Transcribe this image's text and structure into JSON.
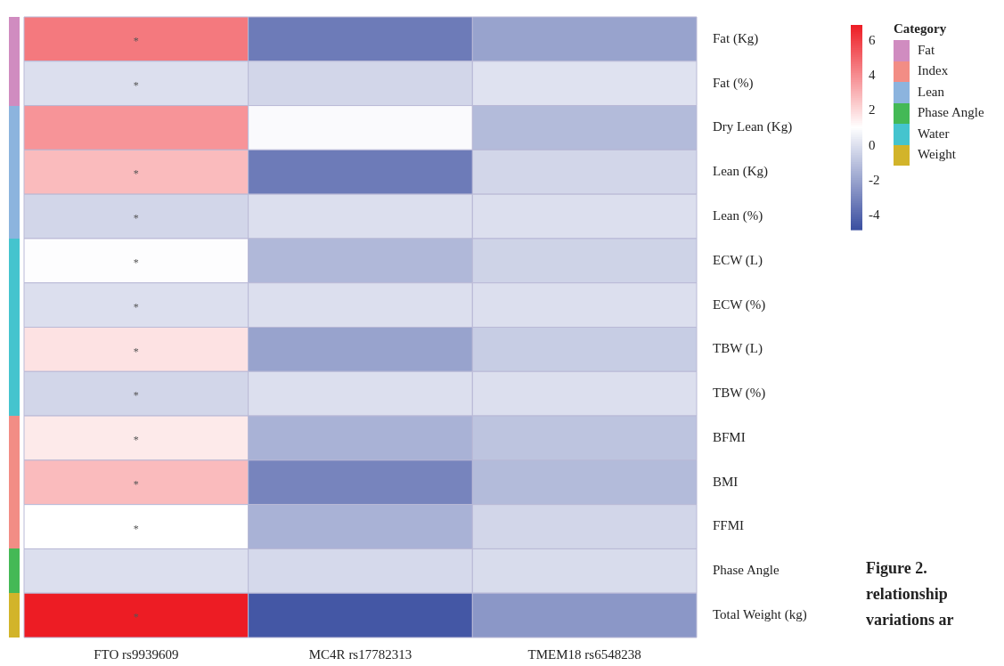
{
  "chart_data": {
    "type": "heatmap",
    "categories": [
      "FTO rs9939609",
      "MC4R rs17782313",
      "TMEM18 rs6548238"
    ],
    "y_categories": [
      "Fat (Kg)",
      "Fat (%)",
      "Dry Lean (Kg)",
      "Lean (Kg)",
      "Lean (%)",
      "ECW (L)",
      "ECW (%)",
      "TBW (L)",
      "TBW (%)",
      "BFMI",
      "BMI",
      "FFMI",
      "Phase Angle",
      "Total Weight (kg)"
    ],
    "cells": [
      [
        4.5,
        -3.3,
        -2.0
      ],
      [
        0,
        -0.3,
        0.1
      ],
      [
        3.8,
        0.9,
        -1.2
      ],
      [
        2.8,
        -3.3,
        -0.3
      ],
      [
        -0.3,
        0,
        0
      ],
      [
        1.0,
        -1.3,
        -0.4
      ],
      [
        0,
        0,
        0
      ],
      [
        1.8,
        -2.0,
        -0.6
      ],
      [
        -0.3,
        0,
        0
      ],
      [
        1.6,
        -1.5,
        -0.9
      ],
      [
        2.8,
        -3.0,
        -1.2
      ],
      [
        1.05,
        -1.5,
        -0.3
      ],
      [
        0,
        -0.2,
        -0.1
      ],
      [
        6.9,
        -4.5,
        -2.4
      ]
    ],
    "cell_labels": [
      [
        "*",
        null,
        null
      ],
      [
        "*",
        null,
        null
      ],
      [
        null,
        null,
        null
      ],
      [
        "*",
        null,
        null
      ],
      [
        "*",
        null,
        null
      ],
      [
        "*",
        null,
        null
      ],
      [
        "*",
        null,
        null
      ],
      [
        "*",
        null,
        null
      ],
      [
        "*",
        null,
        null
      ],
      [
        "*",
        null,
        null
      ],
      [
        "*",
        null,
        null
      ],
      [
        "*",
        null,
        null
      ],
      [
        null,
        null,
        null
      ],
      [
        "*",
        null,
        null
      ]
    ],
    "clim": [
      -4.8,
      6.9
    ],
    "cticks": [
      -4,
      -2,
      0,
      2,
      4,
      6
    ],
    "legend_title": "Category",
    "annotations": [
      "Fat",
      "Index",
      "Lean",
      "Phase Angle",
      "Water",
      "Weight",
      "Figure 2.",
      "relationship",
      "variations ar"
    ]
  }
}
